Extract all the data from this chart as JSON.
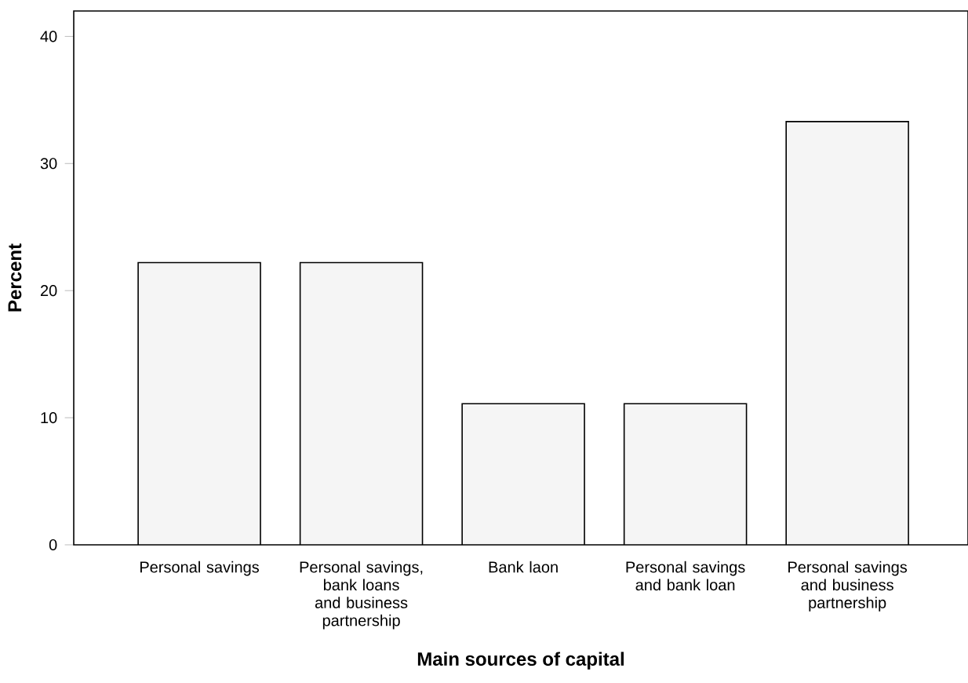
{
  "chart_data": {
    "type": "bar",
    "xlabel": "Main sources of capital",
    "ylabel": "Percent",
    "categories": [
      "Personal savings",
      "Personal savings, bank loans and business partnership",
      "Bank laon",
      "Personal savings and bank loan",
      "Personal savings and business partnership"
    ],
    "values": [
      22.2,
      22.2,
      11.1,
      11.1,
      33.3
    ],
    "color": "#f5f5f5",
    "ylim": [
      0,
      42
    ],
    "yticks": [
      0,
      10,
      20,
      30,
      40
    ],
    "grid": false
  }
}
